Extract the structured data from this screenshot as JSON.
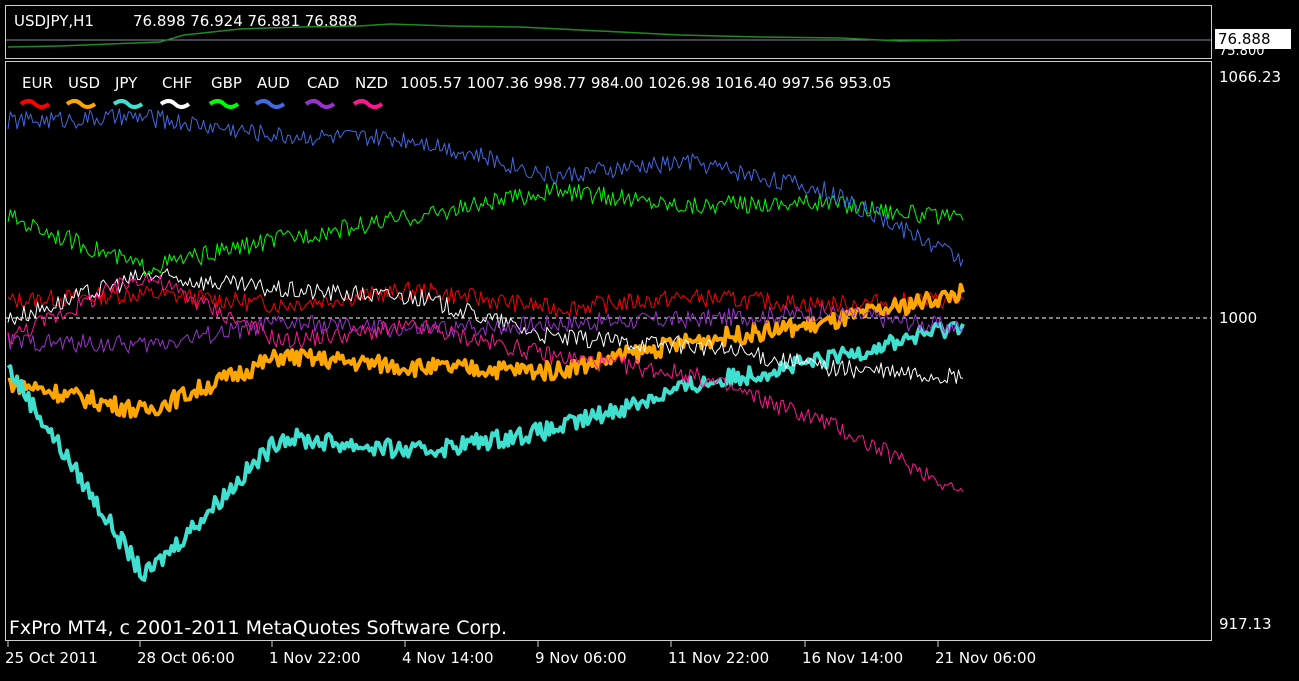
{
  "header": {
    "symbol": "USDJPY,H1",
    "ohlc": "76.898 76.924 76.881 76.888"
  },
  "main_axis": {
    "current_price": "76.888",
    "lower_label": "75.800"
  },
  "indicator": {
    "currencies": [
      "EUR",
      "USD",
      "JPY",
      "CHF",
      "GBP",
      "AUD",
      "CAD",
      "NZD"
    ],
    "values_text": "1005.57 1007.36 998.77 984.00 1026.98 1016.40 997.56 953.05",
    "axis_top": "1066.23",
    "axis_mid": "1000",
    "axis_bottom": "917.13"
  },
  "copyright": "FxPro MT4, c 2001-2011 MetaQuotes Software Corp.",
  "time_labels": [
    "25 Oct 2011",
    "28 Oct 06:00",
    "1 Nov 22:00",
    "4 Nov 14:00",
    "9 Nov 06:00",
    "11 Nov 22:00",
    "16 Nov 14:00",
    "21 Nov 06:00"
  ],
  "chart_data": {
    "type": "line",
    "ylim": [
      917.13,
      1066.23
    ],
    "x": [
      "25 Oct 2011",
      "28 Oct 06:00",
      "1 Nov 22:00",
      "4 Nov 14:00",
      "9 Nov 06:00",
      "11 Nov 22:00",
      "16 Nov 14:00",
      "21 Nov 06:00"
    ],
    "series": [
      {
        "name": "EUR",
        "color": "#ff0000",
        "width": 1,
        "values": [
          1005,
          1007,
          1004,
          1008,
          1003,
          1006,
          1004,
          1005.57
        ]
      },
      {
        "name": "USD",
        "color": "#ffa500",
        "width": 4,
        "values": [
          983,
          975,
          990,
          987,
          986,
          994,
          999,
          1007.36
        ]
      },
      {
        "name": "JPY",
        "color": "#40e0d0",
        "width": 4,
        "values": [
          987,
          930,
          968,
          964,
          970,
          982,
          989,
          998.77
        ]
      },
      {
        "name": "CHF",
        "color": "#ffffff",
        "width": 1,
        "values": [
          1000,
          1012,
          1008,
          1006,
          995,
          993,
          987,
          984.0
        ]
      },
      {
        "name": "GBP",
        "color": "#00ff00",
        "width": 1,
        "values": [
          1028,
          1014,
          1022,
          1028,
          1035,
          1031,
          1032,
          1026.98
        ]
      },
      {
        "name": "AUD",
        "color": "#4169e1",
        "width": 1,
        "values": [
          1054,
          1055,
          1050,
          1049,
          1039,
          1043,
          1035,
          1016.4
        ]
      },
      {
        "name": "CAD",
        "color": "#9932cc",
        "width": 1,
        "values": [
          994,
          993,
          999,
          997,
          999,
          1000,
          1002,
          997.56
        ]
      },
      {
        "name": "NZD",
        "color": "#ff1493",
        "width": 1,
        "values": [
          995,
          1012,
          994,
          998,
          990,
          985,
          972,
          953.05
        ]
      }
    ]
  }
}
